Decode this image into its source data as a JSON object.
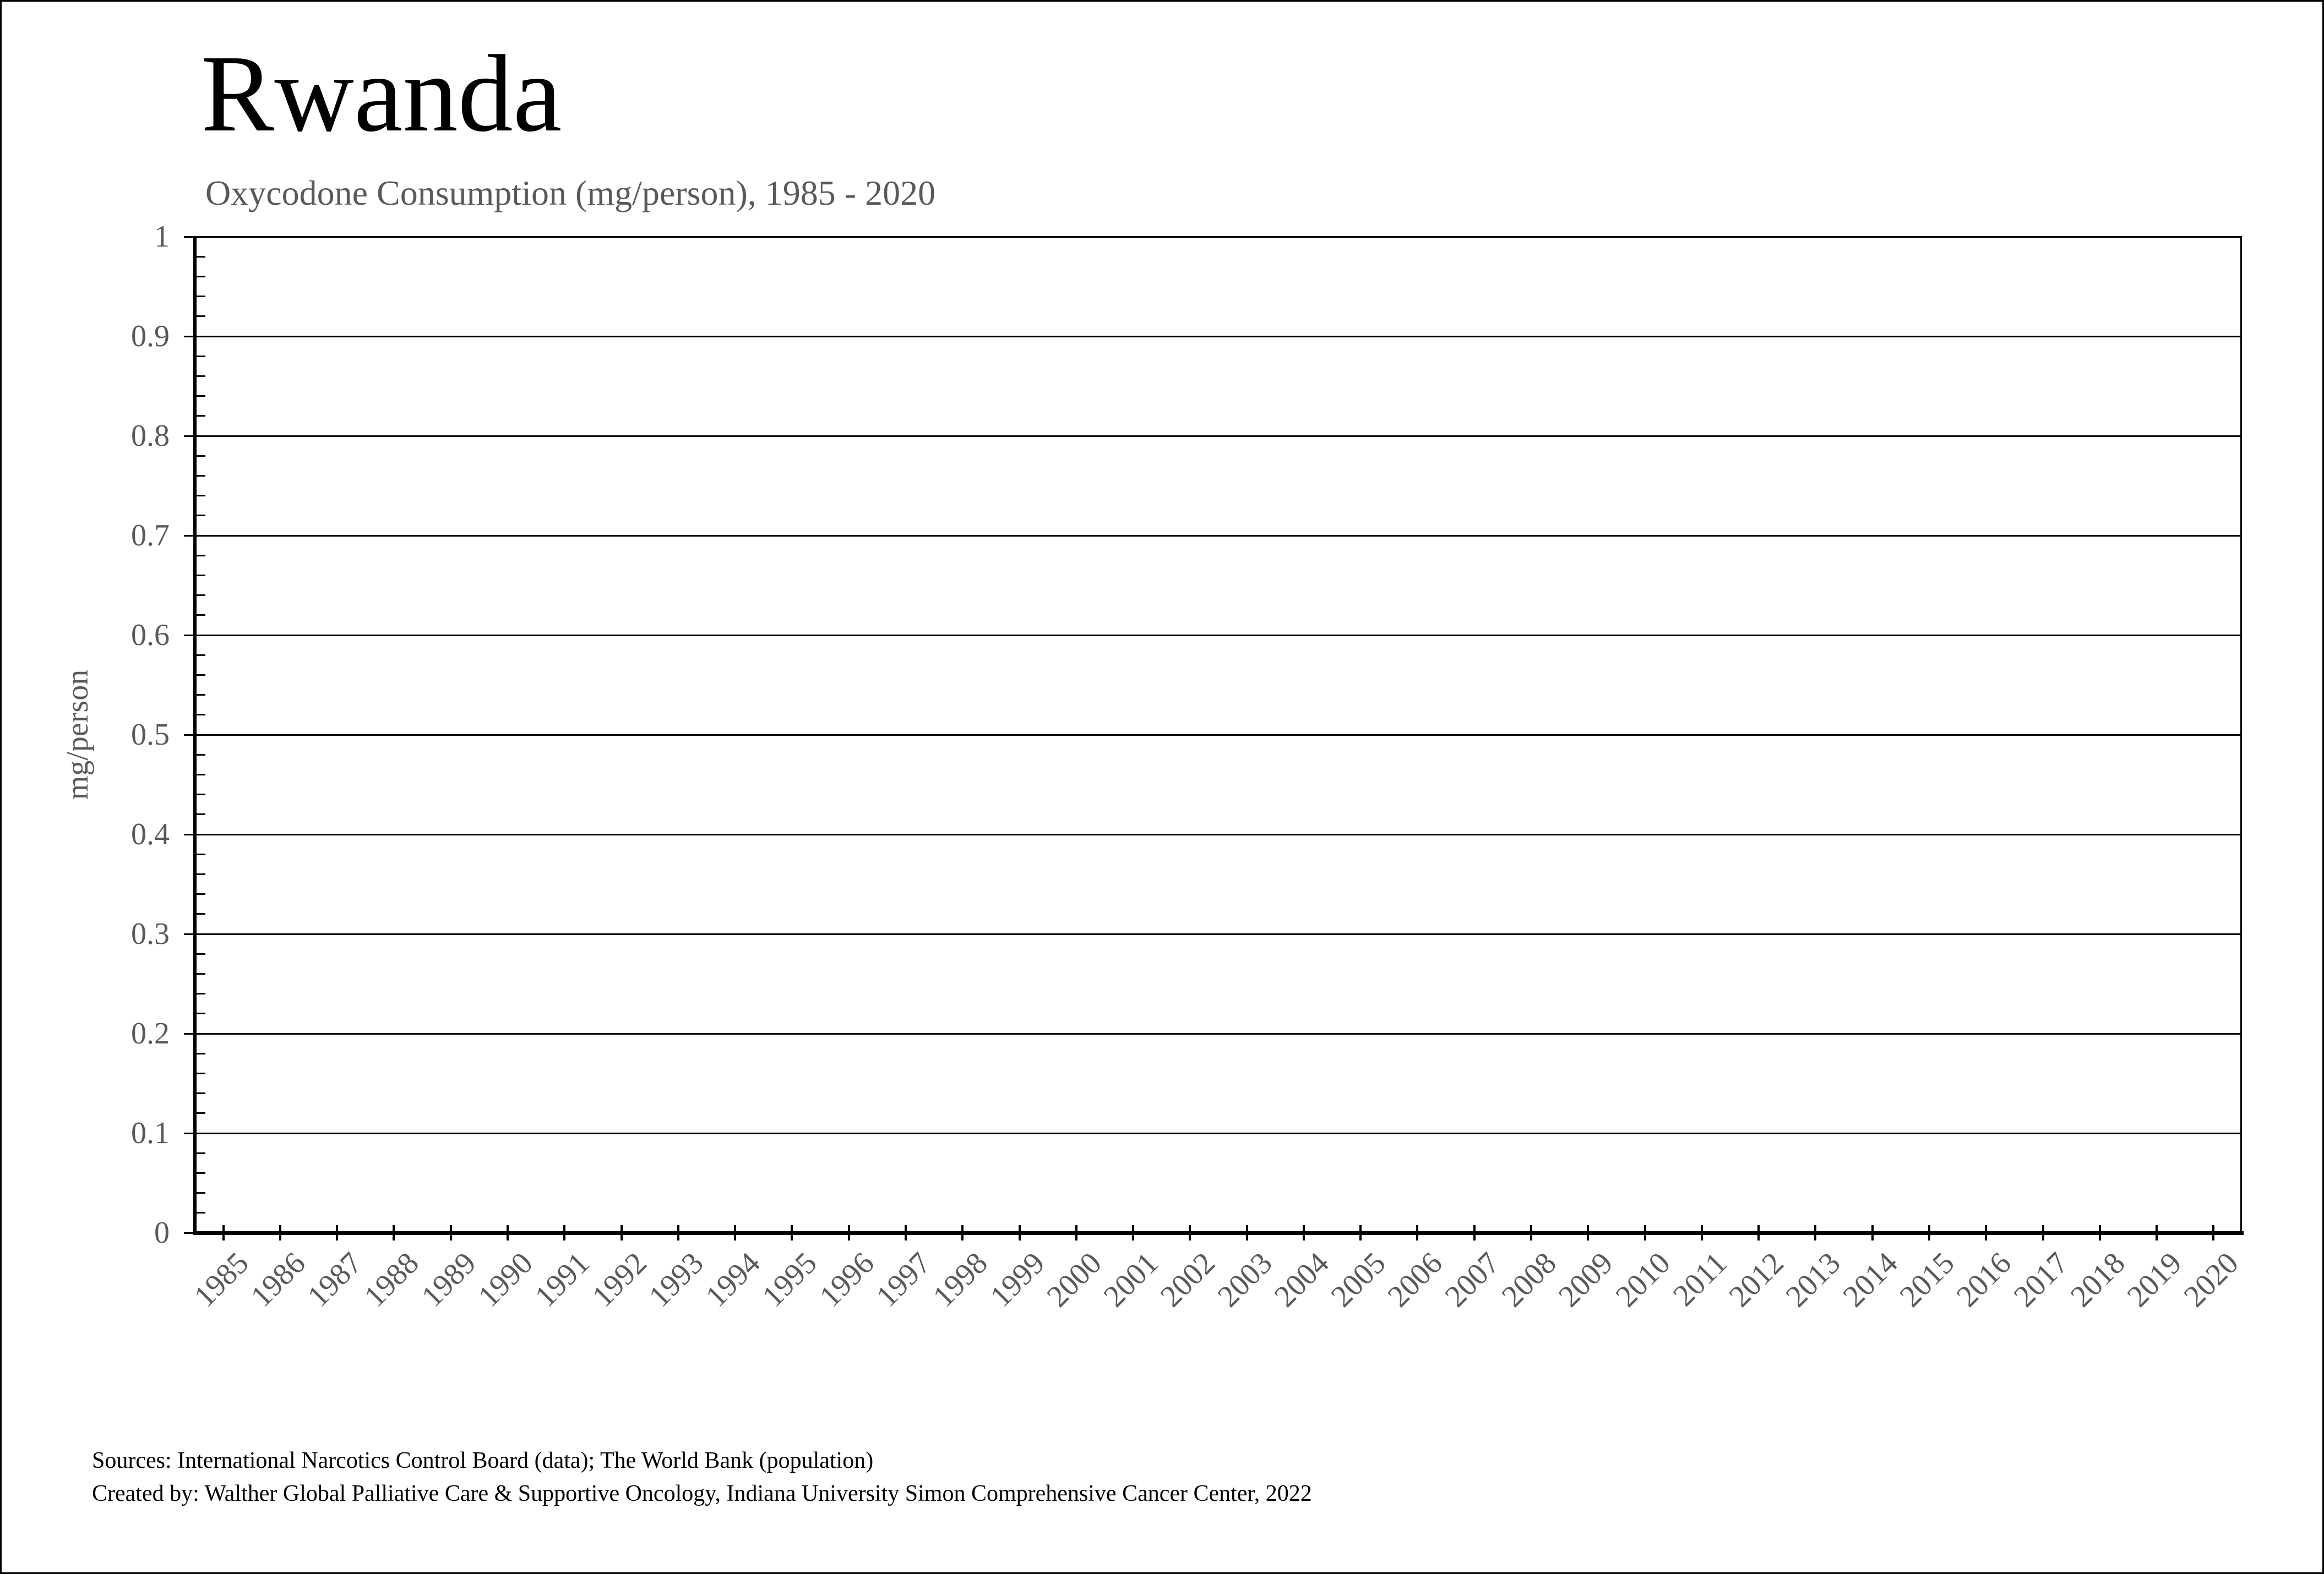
{
  "header": {
    "title": "Rwanda",
    "subtitle": "Oxycodone Consumption (mg/person), 1985 - 2020"
  },
  "footer": {
    "sources_line": "Sources: International Narcotics Control Board (data); The World Bank (population)",
    "credit_line": "Created by: Walther Global Palliative Care & Supportive Oncology, Indiana University Simon Comprehensive Cancer Center, 2022"
  },
  "colors": {
    "text": "#000000",
    "muted_text": "#595959",
    "axis": "#000000",
    "background": "#ffffff"
  },
  "chart_data": {
    "type": "line",
    "title": "Rwanda",
    "subtitle": "Oxycodone Consumption (mg/person), 1985 - 2020",
    "xlabel": "",
    "ylabel": "mg/person",
    "categories": [
      "1985",
      "1986",
      "1987",
      "1988",
      "1989",
      "1990",
      "1991",
      "1992",
      "1993",
      "1994",
      "1995",
      "1996",
      "1997",
      "1998",
      "1999",
      "2000",
      "2001",
      "2002",
      "2003",
      "2004",
      "2005",
      "2006",
      "2007",
      "2008",
      "2009",
      "2010",
      "2011",
      "2012",
      "2013",
      "2014",
      "2015",
      "2016",
      "2017",
      "2018",
      "2019",
      "2020"
    ],
    "series": [],
    "ylim": [
      0,
      1
    ],
    "ytick_step": 0.1,
    "ytick_minor_step": 0.02,
    "ytick_labels": [
      "0",
      "0.1",
      "0.2",
      "0.3",
      "0.4",
      "0.5",
      "0.6",
      "0.7",
      "0.8",
      "0.9",
      "1"
    ],
    "grid": "horizontal-major",
    "legend": "none",
    "xtick_label_rotation_deg": 45
  }
}
